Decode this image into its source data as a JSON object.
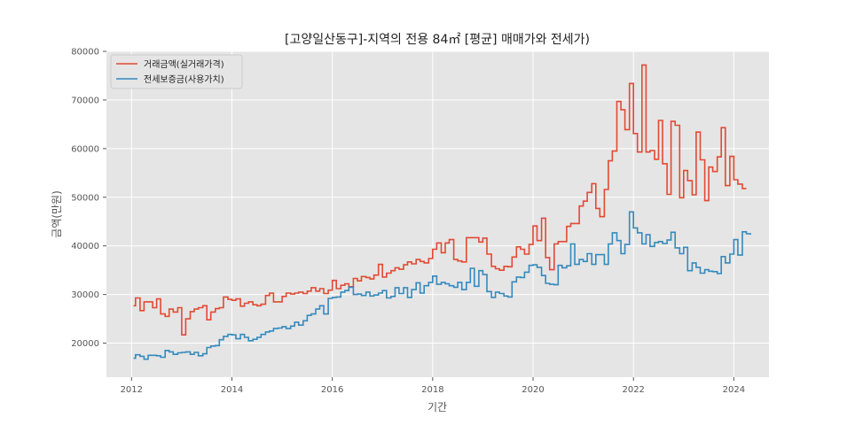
{
  "chart_data": {
    "type": "line",
    "step": true,
    "title": "[고양일산동구]-지역의 전용 84㎡ [평균] 매매가와 전세가)",
    "xlabel": "기간",
    "ylabel": "금액(만원)",
    "xlim": [
      2011.5,
      2024.7
    ],
    "ylim": [
      13000,
      80000
    ],
    "xticks": [
      2012,
      2014,
      2016,
      2018,
      2020,
      2022,
      2024
    ],
    "xtick_labels": [
      "2012",
      "2014",
      "2016",
      "2018",
      "2020",
      "2022",
      "2024"
    ],
    "yticks": [
      20000,
      30000,
      40000,
      50000,
      60000,
      70000,
      80000
    ],
    "ytick_labels": [
      "20000",
      "30000",
      "40000",
      "50000",
      "60000",
      "70000",
      "80000"
    ],
    "grid": true,
    "legend": "top-left",
    "background": "#e5e5e5",
    "series": [
      {
        "name": "거래금액(실거래가격)",
        "color": "#e24a33",
        "points": [
          [
            2012.04,
            27700
          ],
          [
            2012.08,
            29300
          ],
          [
            2012.17,
            26700
          ],
          [
            2012.25,
            28500
          ],
          [
            2012.42,
            27300
          ],
          [
            2012.5,
            29100
          ],
          [
            2012.58,
            26000
          ],
          [
            2012.67,
            25500
          ],
          [
            2012.75,
            27000
          ],
          [
            2012.83,
            26400
          ],
          [
            2012.92,
            27300
          ],
          [
            2013.0,
            21700
          ],
          [
            2013.08,
            25000
          ],
          [
            2013.17,
            26500
          ],
          [
            2013.25,
            27000
          ],
          [
            2013.33,
            27300
          ],
          [
            2013.42,
            27700
          ],
          [
            2013.5,
            24800
          ],
          [
            2013.58,
            26400
          ],
          [
            2013.67,
            27100
          ],
          [
            2013.75,
            27300
          ],
          [
            2013.83,
            29500
          ],
          [
            2013.92,
            29000
          ],
          [
            2014.0,
            28800
          ],
          [
            2014.08,
            29100
          ],
          [
            2014.17,
            27600
          ],
          [
            2014.25,
            28200
          ],
          [
            2014.33,
            28500
          ],
          [
            2014.42,
            27900
          ],
          [
            2014.5,
            27700
          ],
          [
            2014.58,
            28000
          ],
          [
            2014.67,
            29800
          ],
          [
            2014.75,
            30300
          ],
          [
            2014.83,
            28500
          ],
          [
            2015.0,
            29600
          ],
          [
            2015.08,
            30300
          ],
          [
            2015.17,
            30100
          ],
          [
            2015.25,
            30300
          ],
          [
            2015.33,
            30500
          ],
          [
            2015.42,
            30200
          ],
          [
            2015.5,
            30700
          ],
          [
            2015.58,
            31400
          ],
          [
            2015.67,
            30700
          ],
          [
            2015.75,
            31200
          ],
          [
            2015.83,
            30200
          ],
          [
            2015.92,
            30900
          ],
          [
            2016.0,
            32900
          ],
          [
            2016.08,
            31200
          ],
          [
            2016.17,
            31900
          ],
          [
            2016.25,
            32200
          ],
          [
            2016.33,
            31600
          ],
          [
            2016.42,
            33300
          ],
          [
            2016.5,
            32800
          ],
          [
            2016.58,
            33700
          ],
          [
            2016.67,
            33500
          ],
          [
            2016.75,
            33200
          ],
          [
            2016.83,
            34000
          ],
          [
            2016.92,
            36200
          ],
          [
            2017.0,
            33600
          ],
          [
            2017.08,
            34400
          ],
          [
            2017.17,
            34900
          ],
          [
            2017.25,
            35500
          ],
          [
            2017.33,
            35200
          ],
          [
            2017.42,
            36100
          ],
          [
            2017.5,
            36700
          ],
          [
            2017.58,
            36300
          ],
          [
            2017.67,
            37200
          ],
          [
            2017.75,
            36800
          ],
          [
            2017.83,
            36500
          ],
          [
            2017.92,
            37400
          ],
          [
            2018.0,
            39300
          ],
          [
            2018.08,
            40600
          ],
          [
            2018.17,
            38600
          ],
          [
            2018.25,
            40600
          ],
          [
            2018.33,
            41300
          ],
          [
            2018.42,
            37200
          ],
          [
            2018.5,
            36900
          ],
          [
            2018.58,
            36700
          ],
          [
            2018.67,
            41700
          ],
          [
            2018.75,
            41700
          ],
          [
            2018.83,
            41700
          ],
          [
            2018.92,
            40800
          ],
          [
            2019.0,
            41600
          ],
          [
            2019.08,
            38300
          ],
          [
            2019.17,
            35800
          ],
          [
            2019.25,
            35300
          ],
          [
            2019.33,
            35000
          ],
          [
            2019.42,
            35800
          ],
          [
            2019.5,
            35700
          ],
          [
            2019.58,
            37700
          ],
          [
            2019.67,
            39800
          ],
          [
            2019.75,
            39300
          ],
          [
            2019.83,
            38300
          ],
          [
            2019.92,
            40300
          ],
          [
            2020.0,
            44100
          ],
          [
            2020.08,
            41100
          ],
          [
            2020.17,
            45700
          ],
          [
            2020.25,
            37600
          ],
          [
            2020.33,
            35100
          ],
          [
            2020.42,
            40400
          ],
          [
            2020.5,
            40900
          ],
          [
            2020.58,
            40900
          ],
          [
            2020.67,
            44000
          ],
          [
            2020.75,
            44600
          ],
          [
            2020.83,
            44600
          ],
          [
            2020.92,
            48200
          ],
          [
            2021.0,
            49200
          ],
          [
            2021.08,
            51000
          ],
          [
            2021.17,
            52800
          ],
          [
            2021.25,
            47700
          ],
          [
            2021.33,
            46000
          ],
          [
            2021.42,
            51600
          ],
          [
            2021.5,
            57500
          ],
          [
            2021.58,
            59500
          ],
          [
            2021.67,
            69700
          ],
          [
            2021.75,
            68000
          ],
          [
            2021.83,
            63900
          ],
          [
            2021.92,
            73400
          ],
          [
            2022.0,
            63100
          ],
          [
            2022.08,
            59300
          ],
          [
            2022.17,
            77200
          ],
          [
            2022.25,
            59300
          ],
          [
            2022.33,
            59600
          ],
          [
            2022.42,
            57800
          ],
          [
            2022.5,
            65800
          ],
          [
            2022.58,
            56900
          ],
          [
            2022.67,
            50600
          ],
          [
            2022.75,
            65600
          ],
          [
            2022.83,
            64800
          ],
          [
            2022.92,
            49900
          ],
          [
            2023.0,
            55500
          ],
          [
            2023.08,
            53400
          ],
          [
            2023.17,
            50500
          ],
          [
            2023.25,
            63400
          ],
          [
            2023.33,
            57700
          ],
          [
            2023.42,
            49300
          ],
          [
            2023.5,
            56200
          ],
          [
            2023.58,
            55300
          ],
          [
            2023.67,
            58300
          ],
          [
            2023.75,
            64300
          ],
          [
            2023.83,
            52400
          ],
          [
            2023.92,
            58400
          ],
          [
            2024.0,
            53600
          ],
          [
            2024.08,
            52700
          ],
          [
            2024.17,
            51800
          ],
          [
            2024.25,
            51800
          ]
        ]
      },
      {
        "name": "전세보증금(사용가치)",
        "color": "#348abd",
        "points": [
          [
            2012.04,
            16900
          ],
          [
            2012.08,
            17600
          ],
          [
            2012.17,
            17300
          ],
          [
            2012.25,
            16700
          ],
          [
            2012.33,
            17500
          ],
          [
            2012.42,
            17500
          ],
          [
            2012.5,
            17400
          ],
          [
            2012.58,
            17100
          ],
          [
            2012.67,
            18500
          ],
          [
            2012.75,
            18200
          ],
          [
            2012.83,
            17700
          ],
          [
            2012.92,
            18000
          ],
          [
            2013.0,
            18100
          ],
          [
            2013.08,
            18200
          ],
          [
            2013.17,
            17700
          ],
          [
            2013.25,
            18100
          ],
          [
            2013.33,
            17400
          ],
          [
            2013.42,
            17800
          ],
          [
            2013.5,
            19100
          ],
          [
            2013.58,
            19400
          ],
          [
            2013.67,
            19500
          ],
          [
            2013.75,
            20700
          ],
          [
            2013.83,
            21400
          ],
          [
            2013.92,
            21800
          ],
          [
            2014.0,
            21700
          ],
          [
            2014.08,
            20900
          ],
          [
            2014.17,
            21800
          ],
          [
            2014.25,
            21200
          ],
          [
            2014.33,
            20500
          ],
          [
            2014.42,
            20800
          ],
          [
            2014.5,
            21200
          ],
          [
            2014.58,
            21800
          ],
          [
            2014.67,
            22300
          ],
          [
            2014.75,
            22500
          ],
          [
            2014.83,
            23000
          ],
          [
            2014.92,
            23100
          ],
          [
            2015.0,
            23400
          ],
          [
            2015.08,
            23000
          ],
          [
            2015.17,
            23500
          ],
          [
            2015.25,
            24300
          ],
          [
            2015.33,
            23700
          ],
          [
            2015.42,
            24600
          ],
          [
            2015.5,
            25700
          ],
          [
            2015.58,
            26000
          ],
          [
            2015.67,
            27000
          ],
          [
            2015.75,
            27700
          ],
          [
            2015.83,
            26000
          ],
          [
            2015.92,
            29200
          ],
          [
            2016.0,
            29400
          ],
          [
            2016.08,
            29500
          ],
          [
            2016.17,
            30500
          ],
          [
            2016.25,
            30800
          ],
          [
            2016.33,
            31500
          ],
          [
            2016.42,
            30000
          ],
          [
            2016.5,
            30100
          ],
          [
            2016.58,
            29800
          ],
          [
            2016.67,
            30500
          ],
          [
            2016.75,
            29700
          ],
          [
            2016.83,
            29900
          ],
          [
            2016.92,
            30300
          ],
          [
            2017.0,
            30800
          ],
          [
            2017.08,
            29300
          ],
          [
            2017.17,
            29600
          ],
          [
            2017.25,
            31400
          ],
          [
            2017.33,
            30200
          ],
          [
            2017.42,
            31400
          ],
          [
            2017.5,
            29400
          ],
          [
            2017.58,
            31000
          ],
          [
            2017.67,
            32400
          ],
          [
            2017.75,
            30300
          ],
          [
            2017.83,
            31800
          ],
          [
            2017.92,
            32500
          ],
          [
            2018.0,
            33800
          ],
          [
            2018.08,
            32100
          ],
          [
            2018.17,
            32500
          ],
          [
            2018.25,
            32200
          ],
          [
            2018.33,
            31800
          ],
          [
            2018.42,
            31500
          ],
          [
            2018.5,
            32500
          ],
          [
            2018.58,
            31000
          ],
          [
            2018.67,
            32500
          ],
          [
            2018.75,
            35400
          ],
          [
            2018.83,
            31700
          ],
          [
            2018.92,
            34900
          ],
          [
            2019.0,
            34100
          ],
          [
            2019.08,
            30600
          ],
          [
            2019.17,
            29400
          ],
          [
            2019.25,
            30500
          ],
          [
            2019.33,
            30200
          ],
          [
            2019.42,
            29700
          ],
          [
            2019.5,
            29500
          ],
          [
            2019.58,
            32600
          ],
          [
            2019.67,
            33600
          ],
          [
            2019.75,
            33500
          ],
          [
            2019.83,
            34600
          ],
          [
            2019.92,
            36000
          ],
          [
            2020.0,
            36100
          ],
          [
            2020.08,
            35600
          ],
          [
            2020.17,
            33900
          ],
          [
            2020.25,
            32300
          ],
          [
            2020.33,
            32100
          ],
          [
            2020.42,
            32000
          ],
          [
            2020.5,
            36000
          ],
          [
            2020.58,
            35500
          ],
          [
            2020.67,
            35900
          ],
          [
            2020.75,
            40400
          ],
          [
            2020.83,
            36200
          ],
          [
            2020.92,
            37200
          ],
          [
            2021.0,
            36800
          ],
          [
            2021.08,
            38400
          ],
          [
            2021.17,
            36200
          ],
          [
            2021.25,
            38200
          ],
          [
            2021.33,
            38200
          ],
          [
            2021.42,
            36200
          ],
          [
            2021.5,
            40400
          ],
          [
            2021.58,
            42700
          ],
          [
            2021.67,
            41100
          ],
          [
            2021.75,
            38400
          ],
          [
            2021.83,
            40300
          ],
          [
            2021.92,
            47000
          ],
          [
            2022.0,
            43700
          ],
          [
            2022.08,
            42700
          ],
          [
            2022.17,
            40400
          ],
          [
            2022.25,
            42300
          ],
          [
            2022.33,
            39900
          ],
          [
            2022.42,
            40700
          ],
          [
            2022.5,
            40900
          ],
          [
            2022.58,
            40500
          ],
          [
            2022.67,
            41200
          ],
          [
            2022.75,
            42800
          ],
          [
            2022.83,
            39600
          ],
          [
            2022.92,
            38400
          ],
          [
            2023.0,
            39700
          ],
          [
            2023.08,
            34900
          ],
          [
            2023.17,
            36500
          ],
          [
            2023.25,
            35600
          ],
          [
            2023.33,
            34400
          ],
          [
            2023.42,
            35100
          ],
          [
            2023.5,
            34800
          ],
          [
            2023.58,
            34700
          ],
          [
            2023.67,
            34300
          ],
          [
            2023.75,
            37800
          ],
          [
            2023.83,
            36500
          ],
          [
            2023.92,
            38300
          ],
          [
            2024.0,
            41300
          ],
          [
            2024.08,
            38100
          ],
          [
            2024.17,
            42900
          ],
          [
            2024.25,
            42500
          ],
          [
            2024.33,
            42300
          ]
        ]
      }
    ]
  }
}
